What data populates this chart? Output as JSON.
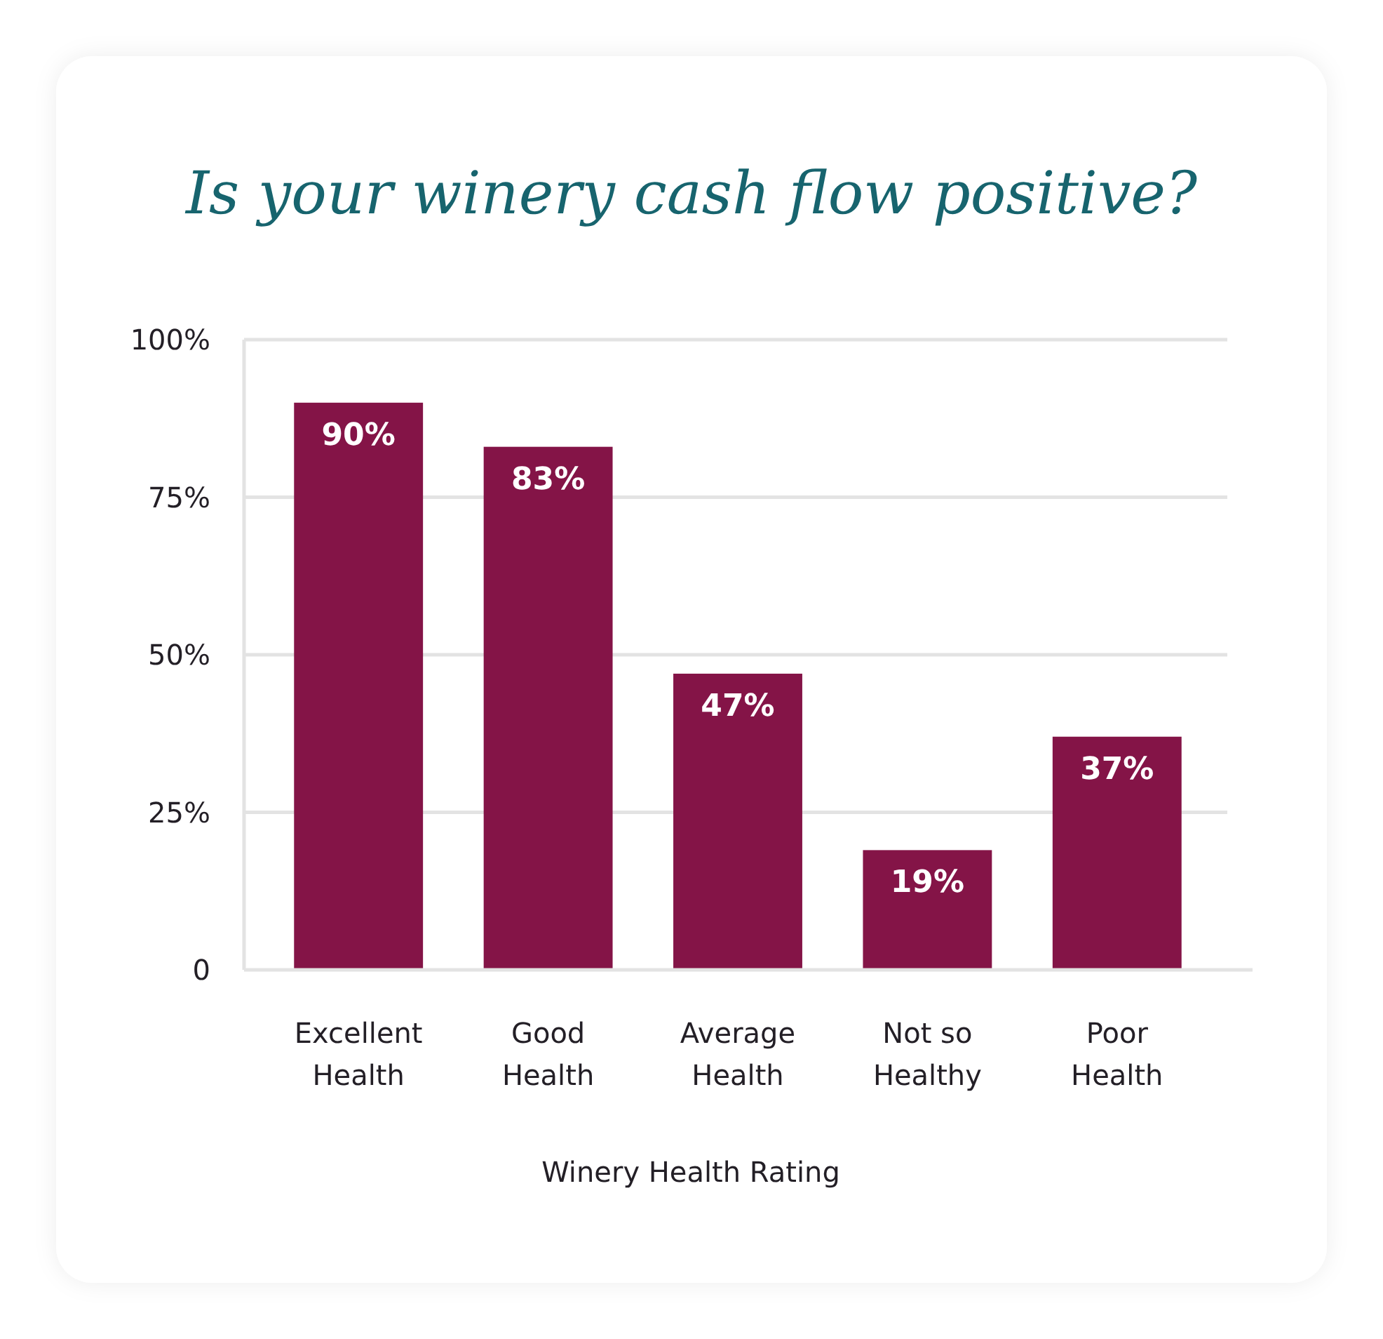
{
  "chart_data": {
    "type": "bar",
    "title": "Is your winery cash flow positive?",
    "xlabel": "Winery Health Rating",
    "categories": [
      "Excellent Health",
      "Good Health",
      "Average Health",
      "Not so Healthy",
      "Poor Health"
    ],
    "values": [
      90,
      83,
      47,
      19,
      37
    ],
    "value_labels": [
      "90%",
      "83%",
      "47%",
      "19%",
      "37%"
    ],
    "color": "#841447",
    "ylim": [
      0,
      100
    ],
    "yticks": [
      0,
      {
        "value": 25,
        "label": "25%"
      },
      {
        "value": 50,
        "label": "50%"
      },
      {
        "value": 75,
        "label": "75%"
      },
      {
        "value": 100,
        "label": "100%"
      }
    ],
    "grid": "y"
  }
}
